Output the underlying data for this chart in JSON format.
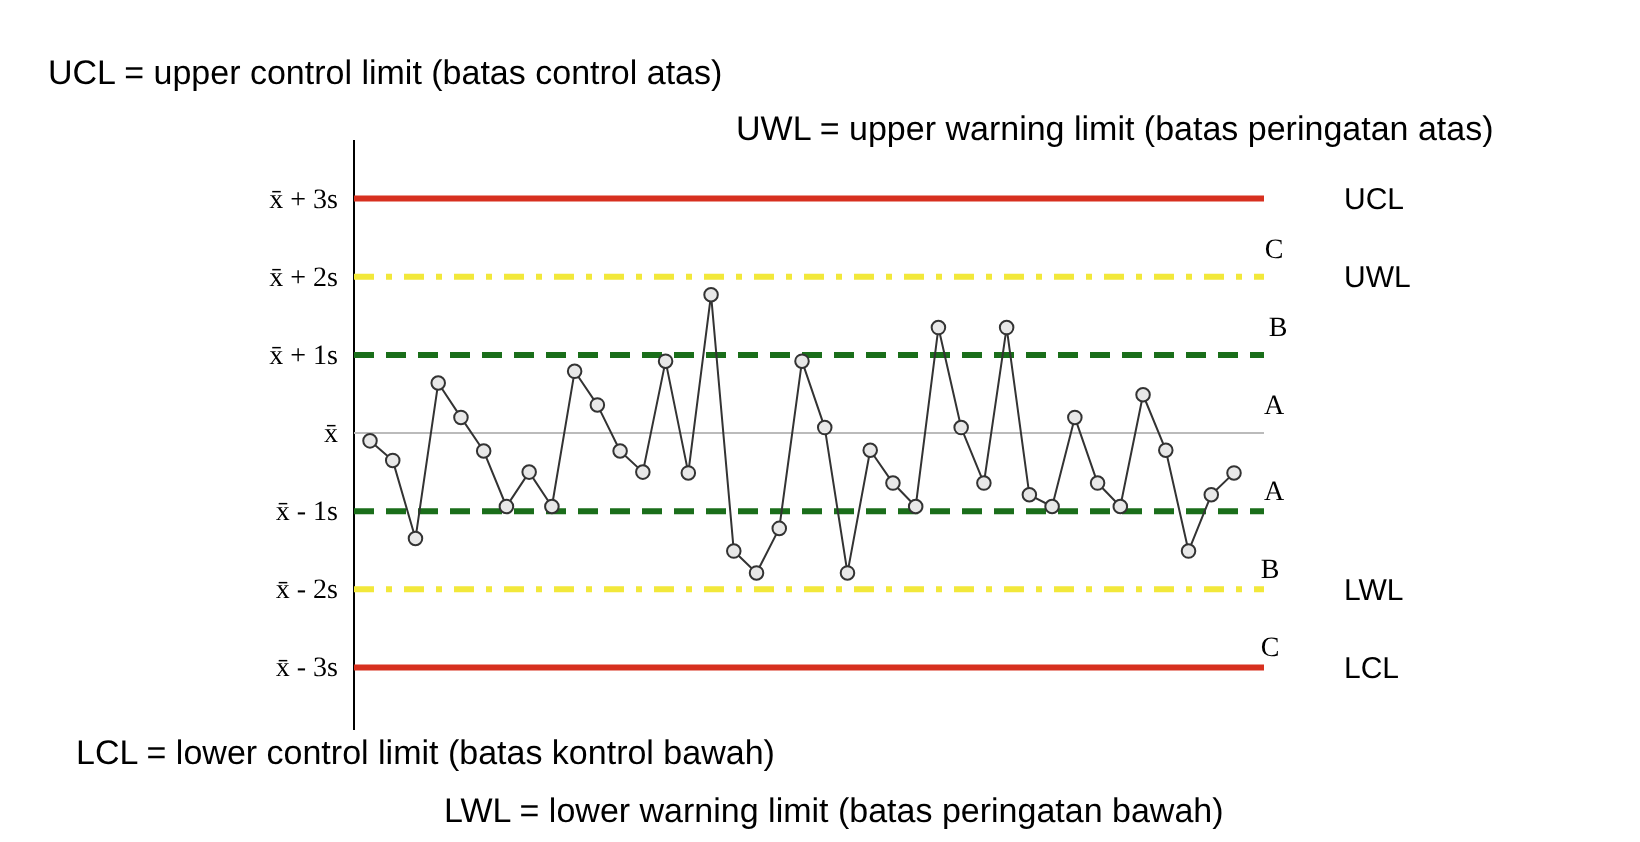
{
  "chart_data": {
    "type": "line",
    "categories": [
      null,
      null,
      null,
      null,
      null,
      null,
      null,
      null,
      null,
      null,
      null,
      null,
      null,
      null,
      null,
      null,
      null,
      null,
      null,
      null,
      null,
      null,
      null,
      null,
      null,
      null,
      null,
      null,
      null,
      null,
      null,
      null,
      null,
      null,
      null,
      null,
      null,
      null,
      null
    ],
    "series": [
      {
        "color": "#333333",
        "values": [
          -0.1,
          -0.35,
          -1.35,
          0.64,
          0.2,
          -0.23,
          -0.94,
          -0.5,
          -0.94,
          0.79,
          0.36,
          -0.23,
          -0.5,
          0.92,
          -0.51,
          1.77,
          -1.51,
          -1.79,
          -1.22,
          0.92,
          0.07,
          -1.79,
          -0.22,
          -0.64,
          -0.94,
          1.35,
          0.07,
          -0.64,
          1.35,
          -0.79,
          -0.94,
          0.2,
          -0.64,
          -0.94,
          0.49,
          -0.22,
          -1.51,
          -0.79,
          -0.51
        ]
      }
    ],
    "marker": "circle",
    "ylim": [
      -3.8,
      3.75
    ],
    "yticks": [
      {
        "value": 3,
        "label": "x̄ + 3s"
      },
      {
        "value": 2,
        "label": "x̄ + 2s"
      },
      {
        "value": 1,
        "label": "x̄ + 1s"
      },
      {
        "value": 0,
        "label": "x̄"
      },
      {
        "value": -1,
        "label": "x̄ - 1s"
      },
      {
        "value": -2,
        "label": "x̄ - 2s"
      },
      {
        "value": -3,
        "label": "x̄ - 3s"
      }
    ],
    "tick_labels": "y",
    "ref_lines": [
      {
        "axis": "y",
        "value": 3,
        "label": "UCL",
        "color": "#d7301f",
        "line_style": "solid"
      },
      {
        "axis": "y",
        "value": 2,
        "label": "UWL",
        "color": "#f2e83a",
        "line_style": "dashdot"
      },
      {
        "axis": "y",
        "value": 1,
        "label": null,
        "color": "#1a6e1a",
        "line_style": "dashed"
      },
      {
        "axis": "y",
        "value": 0,
        "label": null,
        "color": "#bbbbbb",
        "line_style": "solid"
      },
      {
        "axis": "y",
        "value": -1,
        "label": null,
        "color": "#1a6e1a",
        "line_style": "dashed"
      },
      {
        "axis": "y",
        "value": -2,
        "label": "LWL",
        "color": "#f2e83a",
        "line_style": "dashdot"
      },
      {
        "axis": "y",
        "value": -3,
        "label": "LCL",
        "color": "#d7301f",
        "line_style": "solid"
      }
    ],
    "annotations": [
      "UCL = upper control limit (batas control atas)",
      "UWL = upper warning limit (batas peringatan atas)",
      "LCL = lower control limit (batas kontrol bawah)",
      "LWL = lower warning limit (batas peringatan bawah)",
      "C",
      "B",
      "A",
      "A",
      "B",
      "C"
    ]
  }
}
